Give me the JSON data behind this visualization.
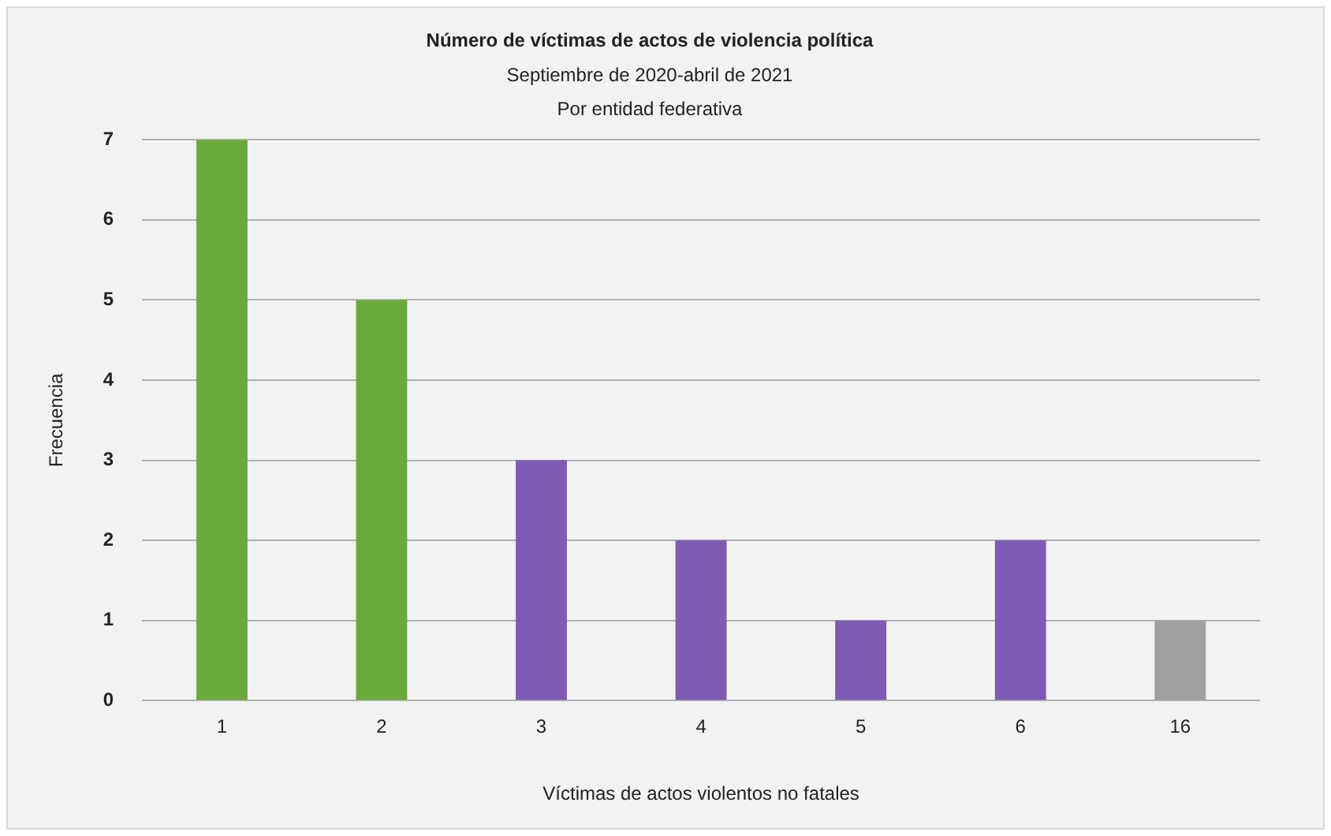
{
  "chart_data": {
    "type": "bar",
    "title": "Número de víctimas de actos de violencia política",
    "subtitle": "Septiembre de 2020-abril de 2021\nPor entidad federativa",
    "xlabel": "Víctimas de actos violentos no fatales",
    "ylabel": "Frecuencia",
    "categories": [
      "1",
      "2",
      "3",
      "4",
      "5",
      "6",
      "16"
    ],
    "values": [
      7,
      5,
      3,
      2,
      1,
      2,
      1
    ],
    "colors": [
      "#6aaa3a",
      "#6aaa3a",
      "#7b5bb4",
      "#7b5bb4",
      "#7b5bb4",
      "#7b5bb4",
      "#a0a0a0"
    ],
    "ylim": [
      0,
      7
    ],
    "yticks": [
      0,
      1,
      2,
      3,
      4,
      5,
      6,
      7
    ],
    "grid": "y",
    "legend": false
  }
}
